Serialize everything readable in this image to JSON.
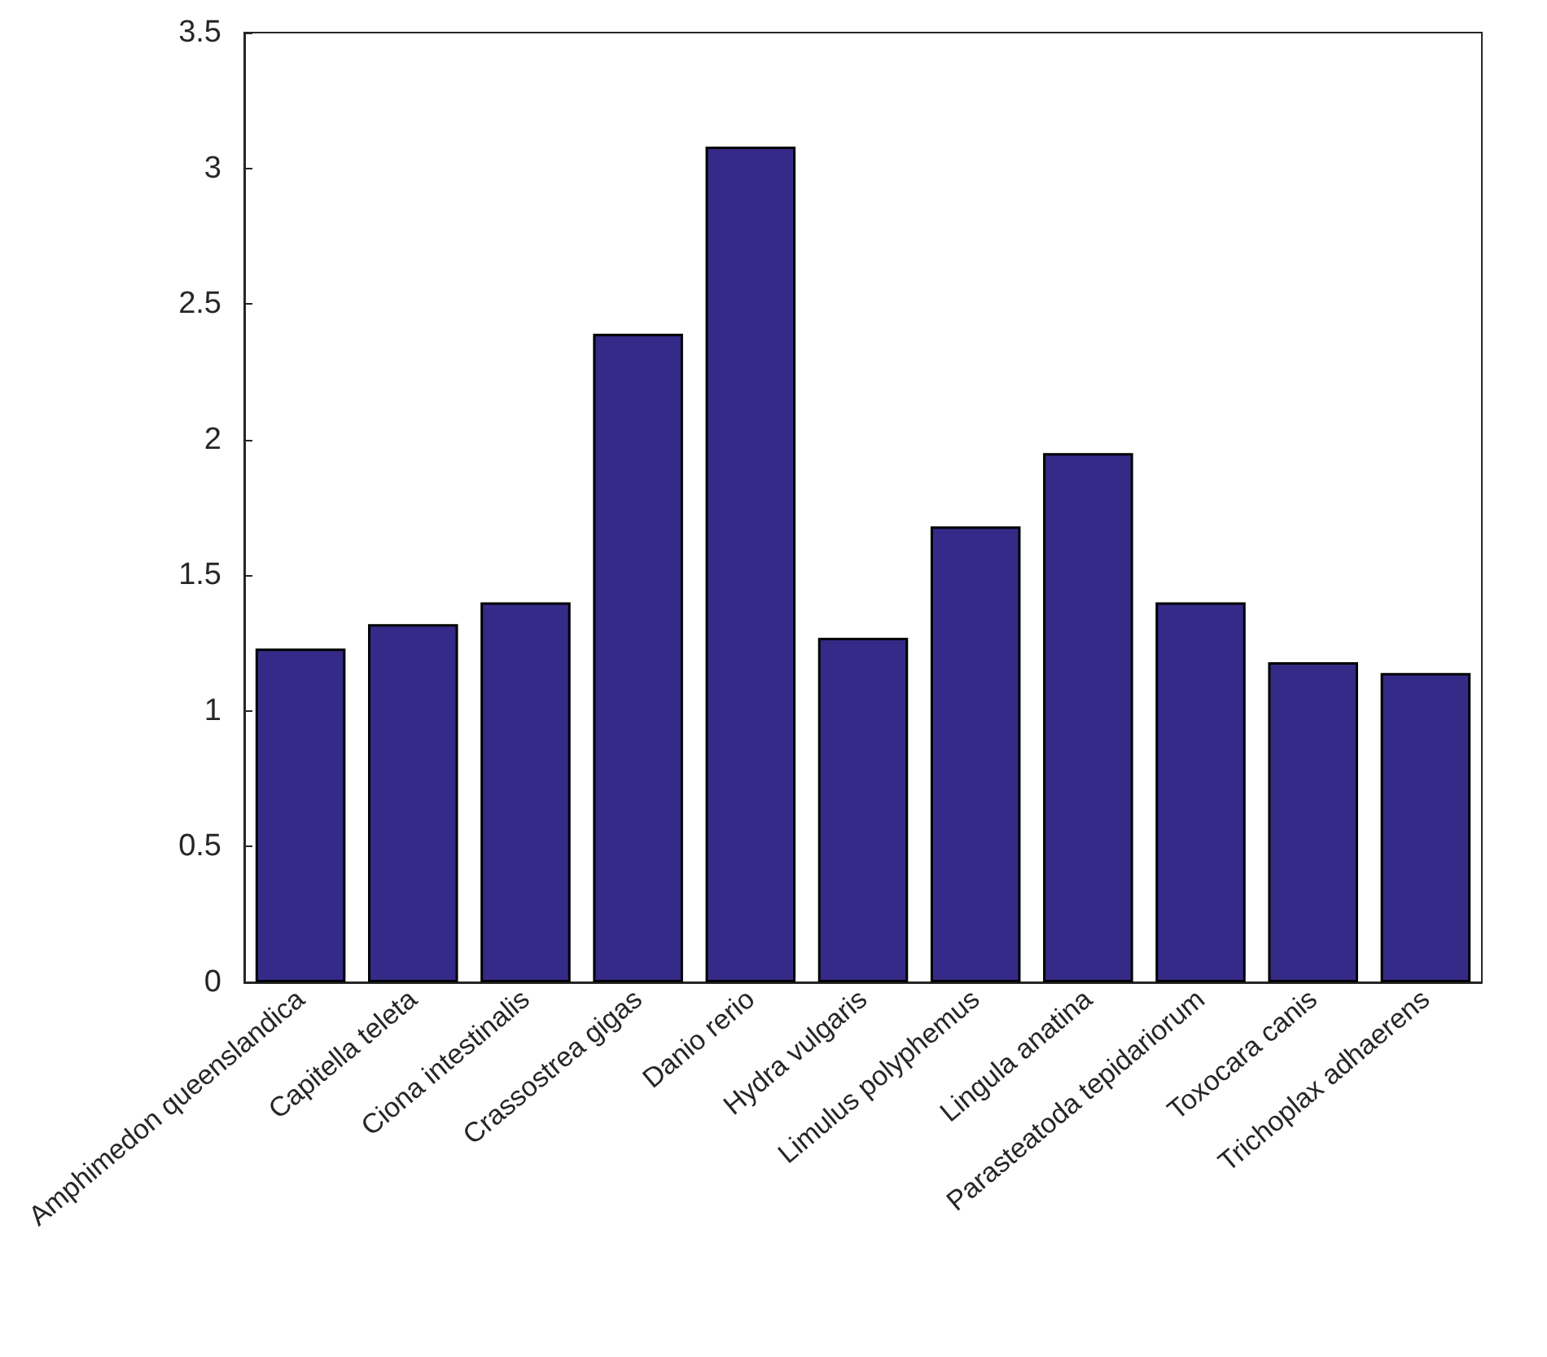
{
  "chart_data": {
    "type": "bar",
    "categories": [
      "Amphimedon queenslandica",
      "Capitella teleta",
      "Ciona intestinalis",
      "Crassostrea gigas",
      "Danio rerio",
      "Hydra vulgaris",
      "Limulus polyphemus",
      "Lingula anatina",
      "Parasteatoda tepidariorum",
      "Toxocara canis",
      "Trichoplax adhaerens"
    ],
    "values": [
      1.23,
      1.32,
      1.4,
      2.39,
      3.08,
      1.27,
      1.68,
      1.95,
      1.4,
      1.18,
      1.14
    ],
    "color": "#352a87",
    "ylim": [
      0,
      3.5
    ],
    "yticks": [
      0,
      0.5,
      1,
      1.5,
      2,
      2.5,
      3,
      3.5
    ],
    "grid": false
  }
}
